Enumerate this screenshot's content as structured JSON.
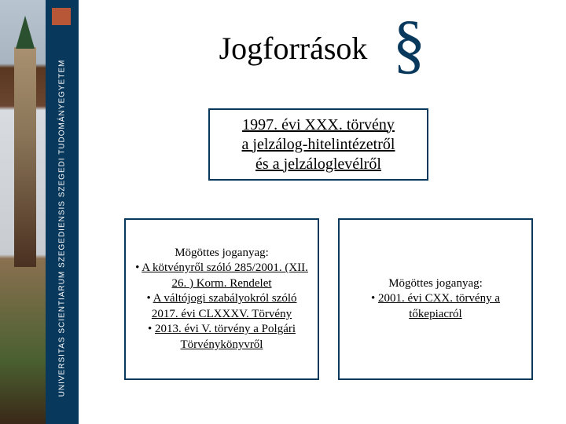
{
  "sidebar": {
    "vertical_label": "UNIVERSITAS SCIENTIARUM SZEGEDIENSIS   SZEGEDI TUDOMÁNYEGYETEM",
    "stripe_color": "#08385c",
    "logo_color": "#b85638"
  },
  "title": "Jogforrások",
  "section_symbol": "§",
  "top_box": {
    "line1": "1997. évi XXX. törvény",
    "line2": "a jelzálog-hitelintézetről",
    "line3": "és a jelzáloglevélről"
  },
  "left_box": {
    "heading": "Mögöttes joganyag:",
    "item1": "A kötvényről szóló 285/2001. (XII. 26. ) Korm. Rendelet",
    "item2": "A váltójogi szabályokról szóló 2017. évi CLXXXV. Törvény",
    "item3": "2013. évi V. törvény a Polgári Törvénykönyvről"
  },
  "right_box": {
    "heading": "Mögöttes joganyag:",
    "item1": "2001. évi CXX. törvény a tőkepiacról"
  },
  "colors": {
    "border": "#08385c",
    "text": "#000000",
    "background": "#ffffff"
  }
}
